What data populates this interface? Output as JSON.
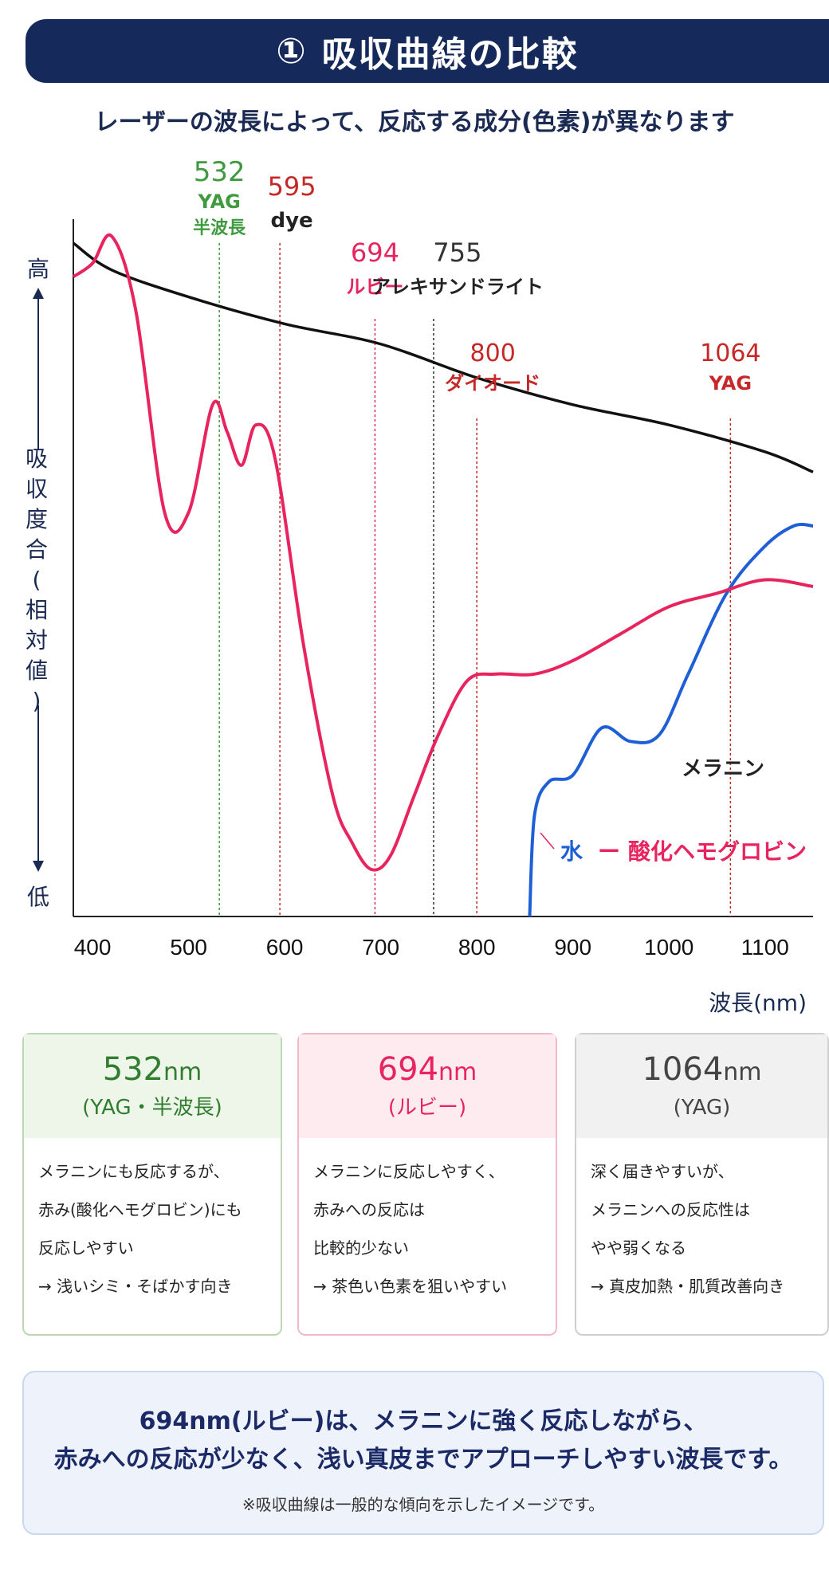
{
  "header": {
    "number": "①",
    "title": "吸収曲線の比較",
    "subtitle": "レーザーの波長によって、反応する成分(色素)が異なります"
  },
  "chart_data": {
    "type": "line",
    "xlabel": "波長(nm)",
    "ylabel": "吸収度合(相対値)",
    "y_high_label": "高",
    "y_low_label": "低",
    "xlim": [
      380,
      1150
    ],
    "ylim": [
      0,
      100
    ],
    "xticks": [
      400,
      500,
      600,
      700,
      800,
      900,
      1000,
      1100
    ],
    "grid": false,
    "series": [
      {
        "name": "メラニン",
        "color": "#111111",
        "x": [
          380,
          420,
          500,
          600,
          700,
          800,
          900,
          1000,
          1100,
          1150
        ],
        "y": [
          100,
          96,
          92,
          88,
          85,
          80,
          76,
          73,
          69,
          66
        ]
      },
      {
        "name": "水",
        "color": "#1f5fd6",
        "x": [
          855,
          860,
          875,
          900,
          930,
          960,
          990,
          1020,
          1060,
          1100,
          1130,
          1150
        ],
        "y": [
          0,
          15,
          20,
          21,
          28,
          26,
          27,
          36,
          48,
          55,
          58,
          58
        ]
      },
      {
        "name": "酸化ヘモグロビン",
        "color": "#e8245f",
        "x": [
          380,
          400,
          420,
          445,
          475,
          500,
          525,
          540,
          555,
          570,
          590,
          620,
          650,
          670,
          690,
          710,
          735,
          760,
          790,
          820,
          860,
          900,
          950,
          1000,
          1050,
          1100,
          1150
        ],
        "y": [
          95,
          97,
          101,
          90,
          60,
          60,
          76,
          72,
          67,
          73,
          68,
          40,
          18,
          11,
          7,
          9,
          18,
          27,
          35,
          36,
          36,
          38,
          42,
          46,
          48,
          50,
          49
        ]
      }
    ],
    "markers": [
      {
        "value": "532",
        "label": "YAG",
        "sublabel": "半波長",
        "x": 532,
        "color": "#3f9a3f"
      },
      {
        "value": "595",
        "label": "dye",
        "sublabel": "",
        "x": 595,
        "color": "#c62828"
      },
      {
        "value": "694",
        "label": "ルビー",
        "sublabel": "",
        "x": 694,
        "color": "#e8245f"
      },
      {
        "value": "755",
        "label": "アレキサンドライト",
        "sublabel": "",
        "x": 755,
        "color": "#333333"
      },
      {
        "value": "800",
        "label": "ダイオード",
        "sublabel": "",
        "x": 800,
        "color": "#c62828"
      },
      {
        "value": "1064",
        "label": "YAG",
        "sublabel": "",
        "x": 1064,
        "color": "#c62828"
      }
    ],
    "annotation_connector": "ー"
  },
  "cards": [
    {
      "wavelength": "532",
      "unit": "nm",
      "type": "(YAG・半波長)",
      "lines": [
        "メラニンにも反応するが、",
        "赤み(酸化ヘモグロビン)にも",
        "反応しやすい",
        "→ 浅いシミ・そばかす向き"
      ]
    },
    {
      "wavelength": "694",
      "unit": "nm",
      "type": "(ルビー)",
      "lines": [
        "メラニンに反応しやすく、",
        "赤みへの反応は",
        "比較的少ない",
        "→ 茶色い色素を狙いやすい"
      ]
    },
    {
      "wavelength": "1064",
      "unit": "nm",
      "type": "(YAG)",
      "lines": [
        "深く届きやすいが、",
        "メラニンへの反応性は",
        "やや弱くなる",
        "→ 真皮加熱・肌質改善向き"
      ]
    }
  ],
  "summary": {
    "line1": "694nm(ルビー)は、メラニンに強く反応しながら、",
    "line2": "赤みへの反応が少なく、浅い真皮までアプローチしやすい波長です。",
    "note": "※吸収曲線は一般的な傾向を示したイメージです。"
  }
}
